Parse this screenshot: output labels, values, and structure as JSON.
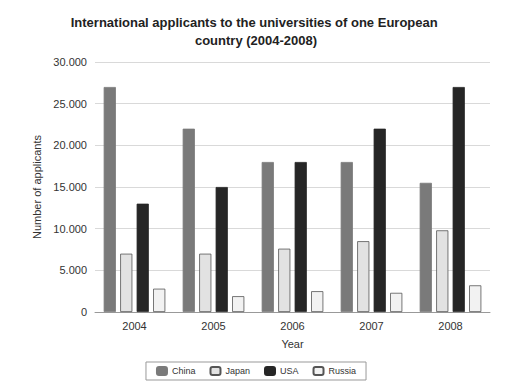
{
  "chart_data": {
    "type": "bar",
    "title": "International applicants to the universities of one European country (2004-2008)",
    "x_label": "Year",
    "y_label": "Number of applicants",
    "categories": [
      "2004",
      "2005",
      "2006",
      "2007",
      "2008"
    ],
    "series": [
      {
        "name": "China",
        "color": "#7a7a7a",
        "values": [
          27000,
          22000,
          18000,
          18000,
          15500
        ]
      },
      {
        "name": "Japan",
        "color": "#e2e2e2",
        "values": [
          7000,
          7000,
          7600,
          8500,
          9800
        ]
      },
      {
        "name": "USA",
        "color": "#262626",
        "values": [
          13000,
          15000,
          18000,
          22000,
          27000
        ]
      },
      {
        "name": "Russia",
        "color": "#f2f2f2",
        "values": [
          2800,
          1900,
          2500,
          2300,
          3200
        ]
      }
    ],
    "ylim": [
      0,
      30000
    ],
    "yticks": [
      0,
      {
        "value": 5000,
        "label": "5.000"
      },
      {
        "value": 10000,
        "label": "10.000"
      },
      {
        "value": 15000,
        "label": "15.000"
      },
      {
        "value": 20000,
        "label": "20.000"
      },
      {
        "value": 25000,
        "label": "25.000"
      },
      {
        "value": 30000,
        "label": "30.000"
      }
    ],
    "grid": true,
    "legend": "bottom"
  }
}
